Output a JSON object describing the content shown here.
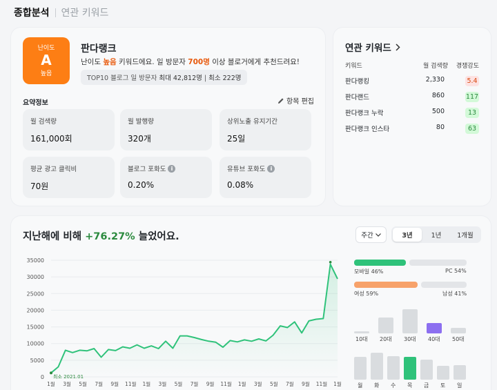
{
  "tabs": {
    "active": "종합분석",
    "inactive": "연관 키워드"
  },
  "keyword": {
    "difficulty_label": "난이도",
    "grade": "A",
    "level": "높음",
    "name": "판다랭크",
    "desc_prefix": "난이도 ",
    "desc_level": "높음",
    "desc_middle": " 키워드에요. 일 방문자 ",
    "desc_visitors": "700명",
    "desc_suffix": " 이상 블로거에게 추천드려요!",
    "top10_label": "TOP10 블로그 일 방문자",
    "top10_max": "최대 42,812명",
    "top10_min": "최소 222명"
  },
  "summary": {
    "title": "요약정보",
    "edit_label": "항목 편집",
    "stats": [
      {
        "label": "월 검색량",
        "value": "161,000회"
      },
      {
        "label": "월 발행량",
        "value": "320개"
      },
      {
        "label": "상위노출 유지기간",
        "value": "25일"
      },
      {
        "label": "평균 광고 클릭비",
        "value": "70원"
      },
      {
        "label": "블로그 포화도",
        "value": "0.20%"
      },
      {
        "label": "유튜브 포화도",
        "value": "0.08%"
      }
    ]
  },
  "related": {
    "title": "연관 키워드",
    "headers": {
      "keyword": "키워드",
      "volume": "월 검색량",
      "competition": "경쟁강도"
    },
    "rows": [
      {
        "keyword": "판다랭킹",
        "volume": "2,330",
        "competition": "5.4",
        "level": "high"
      },
      {
        "keyword": "판다랜드",
        "volume": "860",
        "competition": "117",
        "level": "low"
      },
      {
        "keyword": "판다랭크 누락",
        "volume": "500",
        "competition": "13",
        "level": "low"
      },
      {
        "keyword": "판다랭크 인스타",
        "volume": "80",
        "competition": "63",
        "level": "low"
      }
    ]
  },
  "trend": {
    "title_prefix": "지난해에 비해 ",
    "title_pct": "+76.27%",
    "title_suffix": " 늘었어요.",
    "period": "주간",
    "ranges": [
      "3년",
      "1년",
      "1개월"
    ],
    "active_range": "3년",
    "min_label": "최소 2021.01",
    "devices": {
      "mobile_label": "모바일 46%",
      "pc_label": "PC 54%",
      "mobile": 0.46,
      "pc": 0.54
    },
    "gender": {
      "female_label": "여성 59%",
      "male_label": "남성 41%",
      "female": 0.59,
      "male": 0.41
    },
    "age": {
      "labels": [
        "10대",
        "20대",
        "30대",
        "40대",
        "50대"
      ],
      "values": [
        0.08,
        0.62,
        1.0,
        0.45,
        0.22
      ],
      "highlight": 3
    },
    "weekday": {
      "labels": [
        "월",
        "화",
        "수",
        "목",
        "금",
        "토",
        "일"
      ],
      "values": [
        0.86,
        1.0,
        0.88,
        0.86,
        0.76,
        0.52,
        0.55
      ],
      "highlight": 3
    }
  },
  "colors": {
    "accent_orange": "#fd7e14",
    "green": "#2fc27a",
    "purple": "#8c6ff0",
    "gray_bar": "#d9dcdf"
  },
  "chart_data": {
    "type": "line",
    "ylim": [
      0,
      35000
    ],
    "yticks": [
      0,
      5000,
      10000,
      15000,
      20000,
      25000,
      30000,
      35000
    ],
    "xtick_labels": [
      "1월",
      "3월",
      "5월",
      "7월",
      "9월",
      "11월",
      "1월",
      "3월",
      "5월",
      "7월",
      "9월",
      "11월",
      "1월",
      "3월",
      "5월",
      "7월",
      "9월",
      "11월",
      "1월"
    ],
    "series": [
      {
        "values": [
          1200,
          3000,
          8000,
          7300,
          8000,
          7800,
          8500,
          5900,
          8200,
          7900,
          9000,
          8600,
          9600,
          8600,
          9300,
          8500,
          10700,
          8600,
          12300,
          12300,
          11800,
          11200,
          10700,
          10400,
          8900,
          10900,
          10500,
          11100,
          10700,
          11400,
          10800,
          12500,
          15300,
          14800,
          16500,
          13200,
          16800,
          17300,
          17500,
          33800,
          29400
        ]
      }
    ]
  }
}
